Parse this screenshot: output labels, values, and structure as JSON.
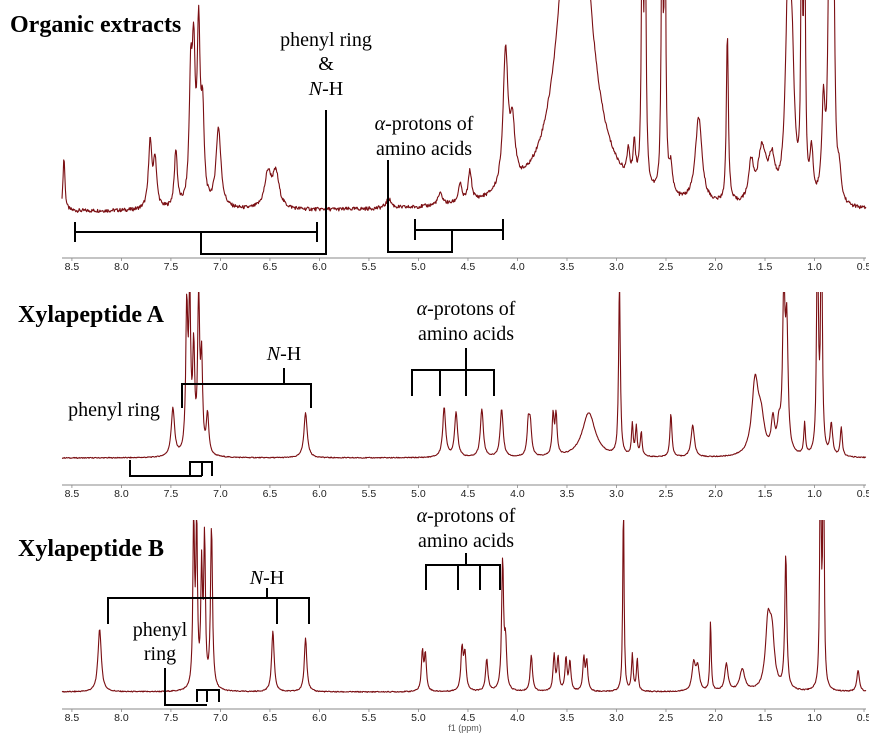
{
  "chart_data": [
    {
      "type": "line",
      "title": "Organic extracts",
      "xlabel": "",
      "xlim": [
        8.6,
        0.48
      ],
      "ticks": [
        "8.5",
        "8.0",
        "7.5",
        "7.0",
        "6.5",
        "6.0",
        "5.5",
        "5.0",
        "4.5",
        "4.0",
        "3.5",
        "3.0",
        "2.5",
        "2.0",
        "1.5",
        "1.0",
        "0.5"
      ],
      "annotations": {
        "phenyl_label_line1": "phenyl ring",
        "phenyl_label_line2": "&",
        "phenyl_label_line3_italic": "N",
        "phenyl_label_line3_rest": "-H",
        "alpha_line1_italic": "α",
        "alpha_line1_rest": "-protons of",
        "alpha_line2": "amino acids"
      },
      "series": [
        {
          "baseline": 0.055,
          "peaks": [
            {
              "x": 8.58,
              "h": 0.28,
              "w": 0.012
            },
            {
              "x": 7.71,
              "h": 0.35,
              "w": 0.02
            },
            {
              "x": 7.66,
              "h": 0.25,
              "w": 0.02
            },
            {
              "x": 7.45,
              "h": 0.3,
              "w": 0.018
            },
            {
              "x": 7.3,
              "h": 0.62,
              "w": 0.018
            },
            {
              "x": 7.27,
              "h": 0.7,
              "w": 0.018
            },
            {
              "x": 7.22,
              "h": 0.88,
              "w": 0.018
            },
            {
              "x": 7.18,
              "h": 0.45,
              "w": 0.018
            },
            {
              "x": 7.02,
              "h": 0.42,
              "w": 0.03
            },
            {
              "x": 6.52,
              "h": 0.18,
              "w": 0.04
            },
            {
              "x": 6.44,
              "h": 0.18,
              "w": 0.04
            },
            {
              "x": 5.3,
              "h": 0.05,
              "w": 0.03
            },
            {
              "x": 4.78,
              "h": 0.06,
              "w": 0.03
            },
            {
              "x": 4.58,
              "h": 0.1,
              "w": 0.02
            },
            {
              "x": 4.48,
              "h": 0.16,
              "w": 0.02
            },
            {
              "x": 4.12,
              "h": 0.72,
              "w": 0.03
            },
            {
              "x": 4.05,
              "h": 0.3,
              "w": 0.03
            },
            {
              "x": 3.42,
              "h": 2.2,
              "w": 0.16
            },
            {
              "x": 2.88,
              "h": 0.15,
              "w": 0.015
            },
            {
              "x": 2.82,
              "h": 0.2,
              "w": 0.015
            },
            {
              "x": 2.74,
              "h": 1.5,
              "w": 0.01
            },
            {
              "x": 2.71,
              "h": 1.5,
              "w": 0.01
            },
            {
              "x": 2.54,
              "h": 1.5,
              "w": 0.01
            },
            {
              "x": 2.51,
              "h": 1.5,
              "w": 0.01
            },
            {
              "x": 2.45,
              "h": 0.15,
              "w": 0.02
            },
            {
              "x": 2.17,
              "h": 0.45,
              "w": 0.04
            },
            {
              "x": 1.88,
              "h": 0.9,
              "w": 0.012
            },
            {
              "x": 1.64,
              "h": 0.2,
              "w": 0.03
            },
            {
              "x": 1.53,
              "h": 0.28,
              "w": 0.05
            },
            {
              "x": 1.43,
              "h": 0.2,
              "w": 0.04
            },
            {
              "x": 1.27,
              "h": 0.95,
              "w": 0.03
            },
            {
              "x": 1.23,
              "h": 0.7,
              "w": 0.03
            },
            {
              "x": 1.13,
              "h": 1.4,
              "w": 0.01
            },
            {
              "x": 1.1,
              "h": 1.4,
              "w": 0.01
            },
            {
              "x": 1.03,
              "h": 0.25,
              "w": 0.02
            },
            {
              "x": 0.91,
              "h": 0.5,
              "w": 0.02
            },
            {
              "x": 0.85,
              "h": 1.5,
              "w": 0.015
            },
            {
              "x": 0.81,
              "h": 1.5,
              "w": 0.015
            },
            {
              "x": 0.75,
              "h": 0.15,
              "w": 0.02
            }
          ]
        }
      ]
    },
    {
      "type": "line",
      "title": "Xylapeptide A",
      "xlabel": "",
      "xlim": [
        8.6,
        0.48
      ],
      "ticks": [
        "8.5",
        "8.0",
        "7.5",
        "7.0",
        "6.5",
        "6.0",
        "5.5",
        "5.0",
        "4.5",
        "4.0",
        "3.5",
        "3.0",
        "2.5",
        "2.0",
        "1.5",
        "1.0",
        "0.5"
      ],
      "annotations": {
        "nh_italic": "N",
        "nh_rest": "-H",
        "phenyl_label": "phenyl ring",
        "alpha_line1_italic": "α",
        "alpha_line1_rest": "-protons of",
        "alpha_line2": "amino acids"
      },
      "series": [
        {
          "baseline": 0.0,
          "peaks": [
            {
              "x": 7.48,
              "h": 0.3,
              "w": 0.02
            },
            {
              "x": 7.34,
              "h": 0.88,
              "w": 0.012
            },
            {
              "x": 7.31,
              "h": 0.92,
              "w": 0.012
            },
            {
              "x": 7.27,
              "h": 0.62,
              "w": 0.012
            },
            {
              "x": 7.22,
              "h": 0.95,
              "w": 0.012
            },
            {
              "x": 7.19,
              "h": 0.55,
              "w": 0.012
            },
            {
              "x": 7.13,
              "h": 0.25,
              "w": 0.015
            },
            {
              "x": 6.14,
              "h": 0.28,
              "w": 0.02
            },
            {
              "x": 4.74,
              "h": 0.31,
              "w": 0.018
            },
            {
              "x": 4.62,
              "h": 0.28,
              "w": 0.018
            },
            {
              "x": 4.36,
              "h": 0.3,
              "w": 0.018
            },
            {
              "x": 4.16,
              "h": 0.3,
              "w": 0.018
            },
            {
              "x": 3.89,
              "h": 0.2,
              "w": 0.015
            },
            {
              "x": 3.87,
              "h": 0.18,
              "w": 0.015
            },
            {
              "x": 3.64,
              "h": 0.25,
              "w": 0.012
            },
            {
              "x": 3.61,
              "h": 0.25,
              "w": 0.012
            },
            {
              "x": 3.28,
              "h": 0.28,
              "w": 0.08
            },
            {
              "x": 2.97,
              "h": 1.1,
              "w": 0.01
            },
            {
              "x": 2.84,
              "h": 0.2,
              "w": 0.01
            },
            {
              "x": 2.8,
              "h": 0.18,
              "w": 0.01
            },
            {
              "x": 2.75,
              "h": 0.15,
              "w": 0.01
            },
            {
              "x": 2.45,
              "h": 0.27,
              "w": 0.012
            },
            {
              "x": 2.23,
              "h": 0.2,
              "w": 0.02
            },
            {
              "x": 1.6,
              "h": 0.45,
              "w": 0.04
            },
            {
              "x": 1.54,
              "h": 0.2,
              "w": 0.04
            },
            {
              "x": 1.42,
              "h": 0.2,
              "w": 0.02
            },
            {
              "x": 1.36,
              "h": 0.15,
              "w": 0.02
            },
            {
              "x": 1.31,
              "h": 0.95,
              "w": 0.015
            },
            {
              "x": 1.28,
              "h": 0.75,
              "w": 0.015
            },
            {
              "x": 1.1,
              "h": 0.2,
              "w": 0.01
            },
            {
              "x": 0.97,
              "h": 1.5,
              "w": 0.01
            },
            {
              "x": 0.93,
              "h": 1.5,
              "w": 0.01
            },
            {
              "x": 0.83,
              "h": 0.2,
              "w": 0.015
            },
            {
              "x": 0.73,
              "h": 0.18,
              "w": 0.012
            }
          ]
        }
      ]
    },
    {
      "type": "line",
      "title": "Xylapeptide B",
      "xlabel": "f1 (ppm)",
      "xlim": [
        8.6,
        0.48
      ],
      "ticks": [
        "8.5",
        "8.0",
        "7.5",
        "7.0",
        "6.5",
        "6.0",
        "5.5",
        "5.0",
        "4.5",
        "4.0",
        "3.5",
        "3.0",
        "2.5",
        "2.0",
        "1.5",
        "1.0",
        "0.5"
      ],
      "annotations": {
        "nh_italic": "N",
        "nh_rest": "-H",
        "phenyl_line1": "phenyl",
        "phenyl_line2": "ring",
        "alpha_line1_italic": "α",
        "alpha_line1_rest": "-protons of",
        "alpha_line2": "amino acids"
      },
      "series": [
        {
          "baseline": 0.0,
          "peaks": [
            {
              "x": 8.22,
              "h": 0.35,
              "w": 0.02
            },
            {
              "x": 7.27,
              "h": 0.92,
              "w": 0.01
            },
            {
              "x": 7.24,
              "h": 0.88,
              "w": 0.01
            },
            {
              "x": 7.19,
              "h": 0.65,
              "w": 0.01
            },
            {
              "x": 7.16,
              "h": 0.82,
              "w": 0.01
            },
            {
              "x": 7.09,
              "h": 0.9,
              "w": 0.012
            },
            {
              "x": 6.47,
              "h": 0.34,
              "w": 0.015
            },
            {
              "x": 6.14,
              "h": 0.3,
              "w": 0.015
            },
            {
              "x": 4.96,
              "h": 0.22,
              "w": 0.012
            },
            {
              "x": 4.93,
              "h": 0.2,
              "w": 0.012
            },
            {
              "x": 4.56,
              "h": 0.23,
              "w": 0.014
            },
            {
              "x": 4.53,
              "h": 0.2,
              "w": 0.014
            },
            {
              "x": 4.31,
              "h": 0.18,
              "w": 0.014
            },
            {
              "x": 4.15,
              "h": 0.72,
              "w": 0.012
            },
            {
              "x": 4.12,
              "h": 0.25,
              "w": 0.012
            },
            {
              "x": 3.86,
              "h": 0.2,
              "w": 0.014
            },
            {
              "x": 3.63,
              "h": 0.2,
              "w": 0.012
            },
            {
              "x": 3.59,
              "h": 0.18,
              "w": 0.012
            },
            {
              "x": 3.51,
              "h": 0.18,
              "w": 0.012
            },
            {
              "x": 3.47,
              "h": 0.16,
              "w": 0.012
            },
            {
              "x": 3.33,
              "h": 0.18,
              "w": 0.012
            },
            {
              "x": 3.3,
              "h": 0.16,
              "w": 0.012
            },
            {
              "x": 2.93,
              "h": 1.05,
              "w": 0.008
            },
            {
              "x": 2.84,
              "h": 0.2,
              "w": 0.01
            },
            {
              "x": 2.79,
              "h": 0.18,
              "w": 0.01
            },
            {
              "x": 2.22,
              "h": 0.15,
              "w": 0.02
            },
            {
              "x": 2.18,
              "h": 0.13,
              "w": 0.02
            },
            {
              "x": 2.05,
              "h": 0.4,
              "w": 0.008
            },
            {
              "x": 1.89,
              "h": 0.15,
              "w": 0.02
            },
            {
              "x": 1.73,
              "h": 0.12,
              "w": 0.03
            },
            {
              "x": 1.47,
              "h": 0.35,
              "w": 0.03
            },
            {
              "x": 1.43,
              "h": 0.28,
              "w": 0.03
            },
            {
              "x": 1.29,
              "h": 0.75,
              "w": 0.012
            },
            {
              "x": 0.94,
              "h": 1.5,
              "w": 0.008
            },
            {
              "x": 0.91,
              "h": 1.5,
              "w": 0.008
            },
            {
              "x": 0.56,
              "h": 0.12,
              "w": 0.015
            }
          ]
        }
      ]
    }
  ]
}
